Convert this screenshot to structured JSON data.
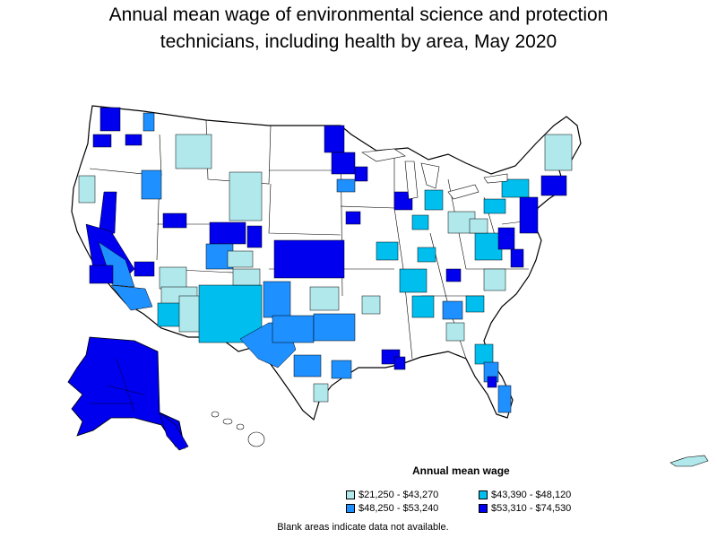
{
  "title": {
    "line1": "Annual mean wage of environmental science and protection",
    "line2": "technicians, including health by area, May 2020"
  },
  "legend": {
    "title": "Annual mean wage",
    "items": [
      {
        "label": "$21,250 - $43,270",
        "color": "#b0e8ec"
      },
      {
        "label": "$43,390 - $48,120",
        "color": "#00bfef"
      },
      {
        "label": "$48,250 - $53,240",
        "color": "#1e90ff"
      },
      {
        "label": "$53,310 - $74,530",
        "color": "#0000ee"
      }
    ]
  },
  "note": "Blank areas indicate data not available.",
  "colors": {
    "no_data": "#ffffff",
    "border": "#000000"
  }
}
